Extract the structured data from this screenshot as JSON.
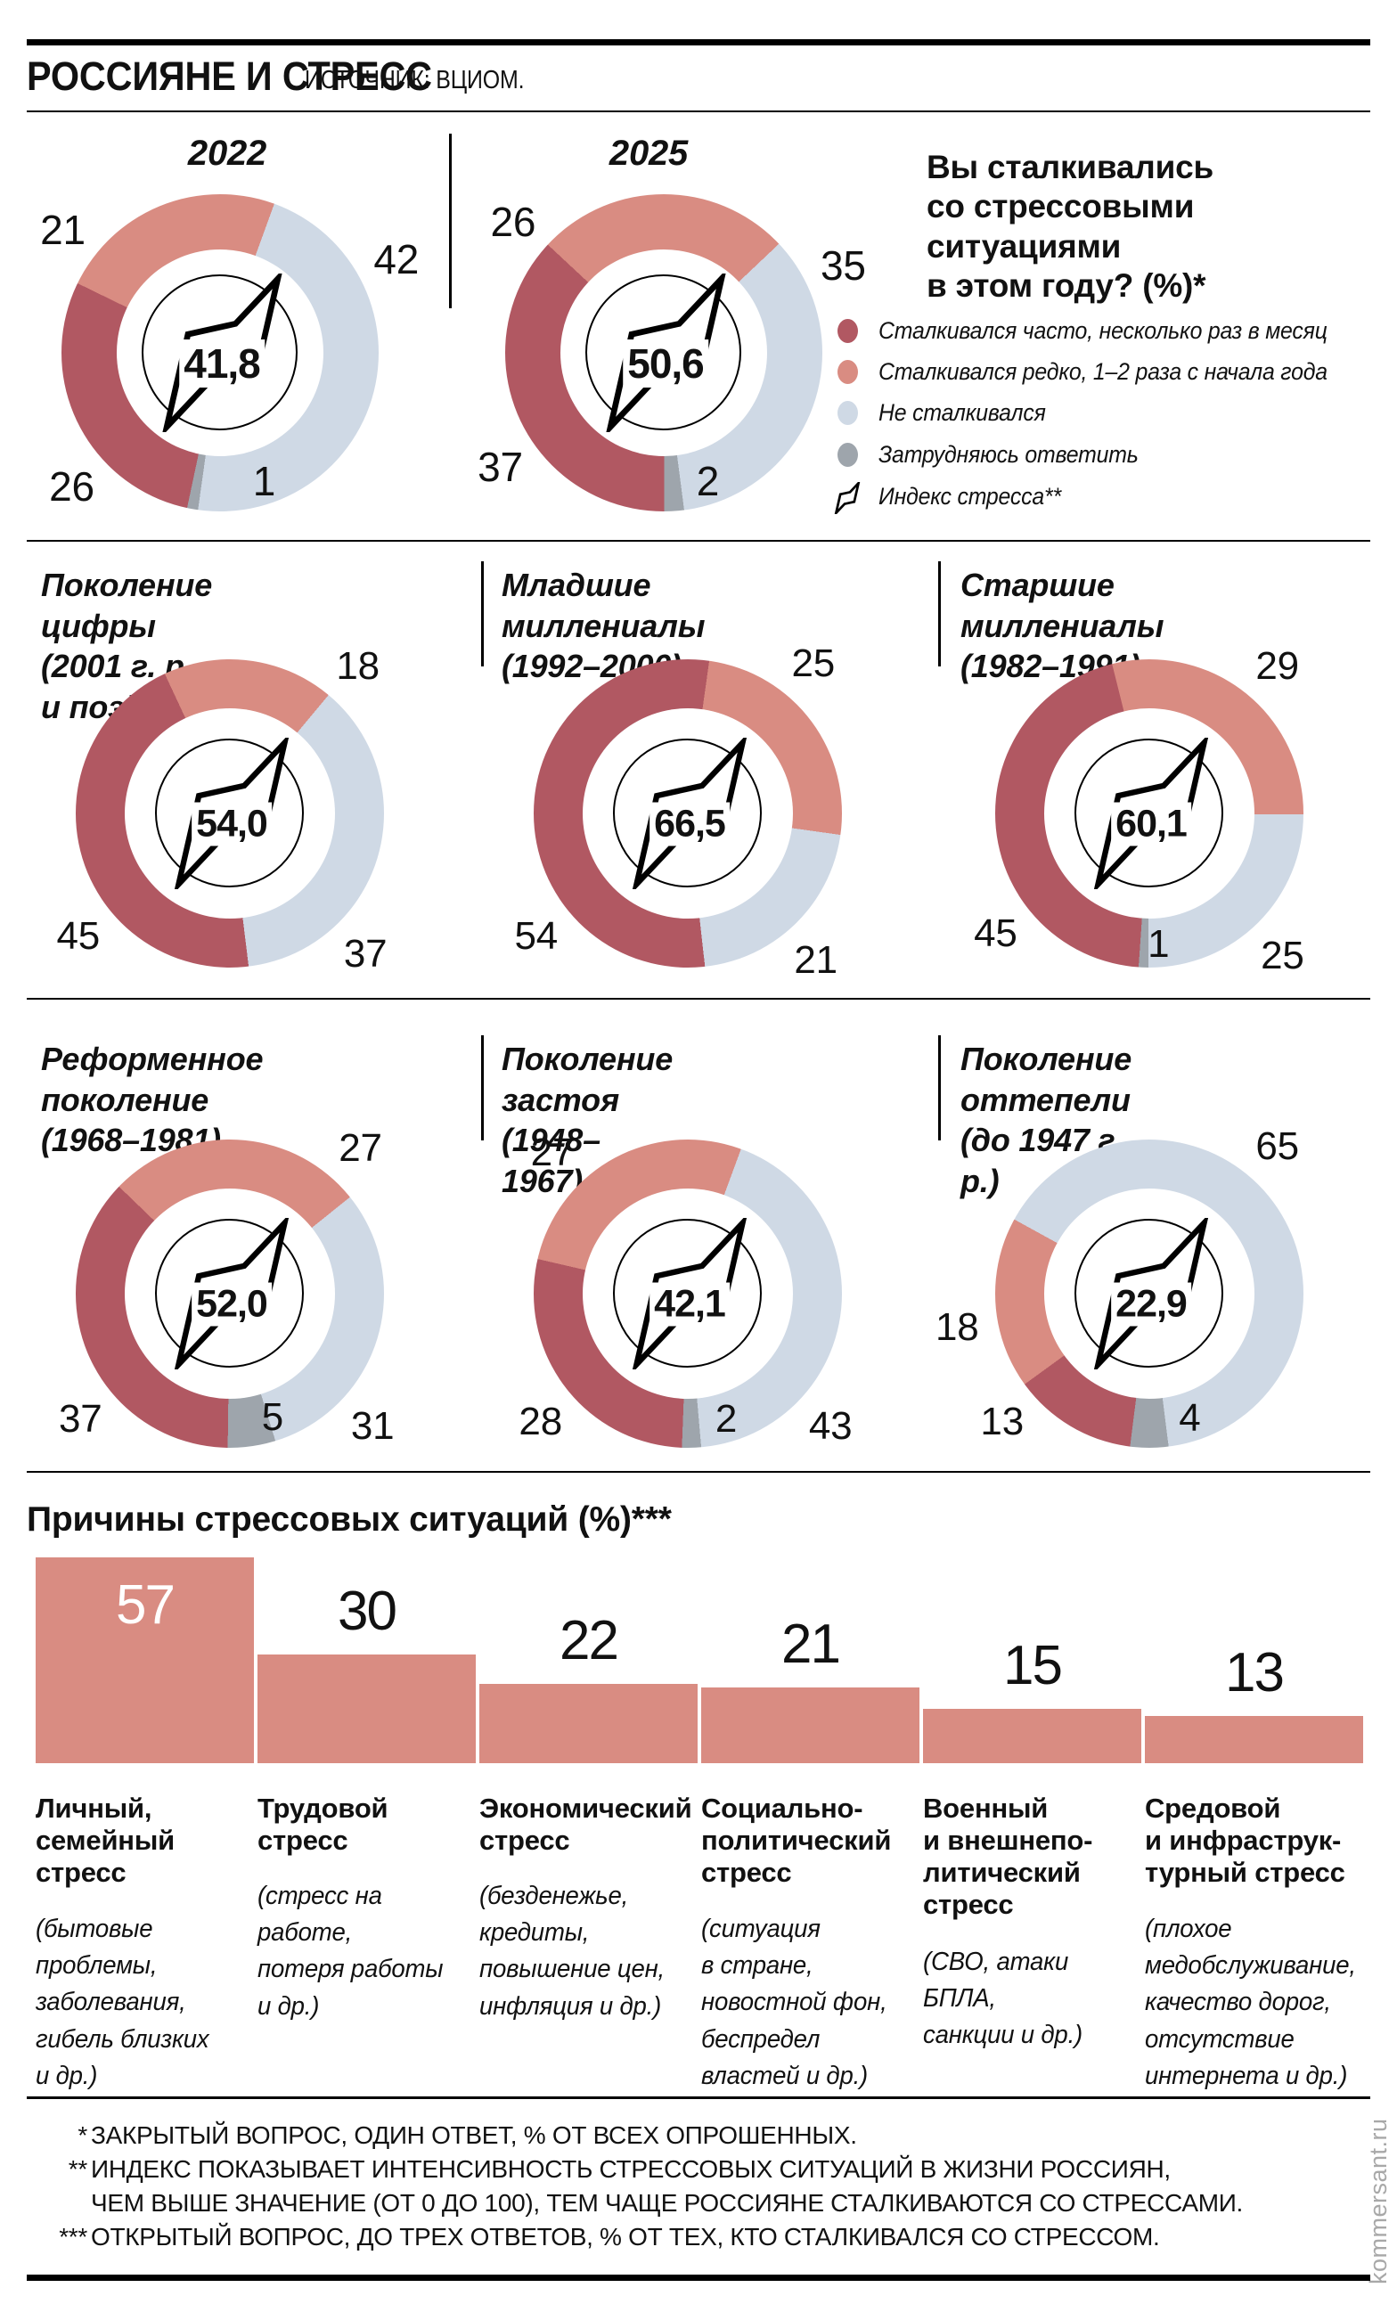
{
  "header": {
    "title": "РОССИЯНЕ И СТРЕСС",
    "source": "ИСТОЧНИК: ВЦИОМ."
  },
  "question": {
    "text": "Вы сталкивались\nсо стрессовыми\nситуациями\nв этом году? (%)*"
  },
  "colors": {
    "often": "#B15862",
    "rarely": "#D98C82",
    "none": "#CFD9E5",
    "unsure": "#9EA5AC",
    "bar": "#D98C82",
    "text": "#111111",
    "watermark": "#A8A8A8"
  },
  "legend": {
    "items": [
      {
        "key": "often",
        "type": "dot",
        "label": "Сталкивался часто, несколько раз в месяц"
      },
      {
        "key": "rarely",
        "type": "dot",
        "label": "Сталкивался редко, 1–2 раза с начала года"
      },
      {
        "key": "none",
        "type": "dot",
        "label": "Не сталкивался"
      },
      {
        "key": "unsure",
        "type": "dot",
        "label": "Затрудняюсь ответить"
      },
      {
        "key": "index",
        "type": "flag",
        "label": "Индекс стресса**"
      }
    ]
  },
  "chart_data": {
    "donuts": [
      {
        "id": "y2022",
        "title": "2022",
        "index": "41,8",
        "rotation": -64,
        "segments": [
          {
            "key": "rarely",
            "value": 21,
            "label_angle": -52
          },
          {
            "key": "none",
            "value": 42,
            "label_angle": 62
          },
          {
            "key": "unsure",
            "value": 1,
            "label_angle": 161,
            "label_inside": true
          },
          {
            "key": "often",
            "value": 26,
            "label_angle": 228
          }
        ]
      },
      {
        "id": "y2025",
        "title": "2025",
        "index": "50,6",
        "rotation": -47,
        "segments": [
          {
            "key": "rarely",
            "value": 26,
            "label_angle": -49
          },
          {
            "key": "none",
            "value": 35,
            "label_angle": 64
          },
          {
            "key": "unsure",
            "value": 2,
            "label_angle": 161,
            "label_inside": true
          },
          {
            "key": "often",
            "value": 37,
            "label_angle": 235
          }
        ]
      },
      {
        "id": "gen-digital",
        "title": "Поколение цифры\n(2001 г. р. и позднее)",
        "index": "54,0",
        "rotation": -25,
        "segments": [
          {
            "key": "rarely",
            "value": 18,
            "label_angle": 41
          },
          {
            "key": "none",
            "value": 37,
            "label_angle": 136
          },
          {
            "key": "often",
            "value": 45,
            "label_angle": 231
          }
        ]
      },
      {
        "id": "gen-younger-mill",
        "title": "Младшие миллениалы\n(1992–2000)",
        "index": "66,5",
        "rotation": 8,
        "segments": [
          {
            "key": "rarely",
            "value": 25,
            "label_angle": 40
          },
          {
            "key": "none",
            "value": 21,
            "label_angle": 139
          },
          {
            "key": "often",
            "value": 54,
            "label_angle": 231
          }
        ]
      },
      {
        "id": "gen-older-mill",
        "title": "Старшие миллениалы\n(1982–1991)",
        "index": "60,1",
        "rotation": -14,
        "segments": [
          {
            "key": "rarely",
            "value": 29,
            "label_angle": 41
          },
          {
            "key": "none",
            "value": 25,
            "label_angle": 137
          },
          {
            "key": "unsure",
            "value": 1,
            "label_angle": 176,
            "label_inside": true
          },
          {
            "key": "often",
            "value": 45,
            "label_angle": 232
          }
        ]
      },
      {
        "id": "gen-reform",
        "title": "Реформенное поколение\n(1968–1981)",
        "index": "52,0",
        "rotation": -46,
        "segments": [
          {
            "key": "rarely",
            "value": 27,
            "label_angle": 42
          },
          {
            "key": "none",
            "value": 31,
            "label_angle": 133
          },
          {
            "key": "unsure",
            "value": 5,
            "label_angle": 161,
            "label_inside": true
          },
          {
            "key": "often",
            "value": 37,
            "label_angle": 230
          }
        ]
      },
      {
        "id": "gen-stagnation",
        "title": "Поколение застоя\n(1948–1967)",
        "index": "42,1",
        "rotation": -77,
        "segments": [
          {
            "key": "rarely",
            "value": 27,
            "label_angle": -44
          },
          {
            "key": "none",
            "value": 43,
            "label_angle": 133
          },
          {
            "key": "unsure",
            "value": 2,
            "label_angle": 163,
            "label_inside": true
          },
          {
            "key": "often",
            "value": 28,
            "label_angle": 229
          }
        ]
      },
      {
        "id": "gen-thaw",
        "title": "Поколение оттепели\n(до 1947 г. р.)",
        "index": "22,9",
        "rotation": -126,
        "segments": [
          {
            "key": "rarely",
            "value": 18,
            "label_angle": 260
          },
          {
            "key": "none",
            "value": 65,
            "label_angle": 41
          },
          {
            "key": "unsure",
            "value": 4,
            "label_angle": 162,
            "label_inside": true
          },
          {
            "key": "often",
            "value": 13,
            "label_angle": 229
          }
        ]
      }
    ],
    "bar_chart": {
      "type": "bar",
      "title": "Причины стрессовых ситуаций (%)***",
      "ylim": [
        0,
        60
      ],
      "bars": [
        {
          "value": 57,
          "value_inside": true,
          "label": "Личный,\nсемейный\nстресс",
          "sublabel": "(бытовые\nпроблемы,\nзаболевания,\nгибель близких\nи др.)"
        },
        {
          "value": 30,
          "label": "Трудовой\nстресс",
          "sublabel": "(стресс на работе,\nпотеря работы\nи др.)"
        },
        {
          "value": 22,
          "label": "Экономический\nстресс",
          "sublabel": "(безденежье,\nкредиты,\nповышение цен,\nинфляция и др.)"
        },
        {
          "value": 21,
          "label": "Социально-\nполитический\nстресс",
          "sublabel": "(ситуация\nв стране,\nновостной фон,\nбеспредел\nвластей и др.)"
        },
        {
          "value": 15,
          "label": "Военный\nи внешнепо-\nлитический\nстресс",
          "sublabel": "(СВО, атаки БПЛА,\nсанкции и др.)"
        },
        {
          "value": 13,
          "label": "Средовой\nи инфраструк-\nтурный стресс",
          "sublabel": "(плохое\nмедобслуживание,\nкачество дорог,\nотсутствие\nинтернета и др.)"
        }
      ]
    }
  },
  "footnotes": {
    "items": [
      {
        "marker": "*",
        "text": "ЗАКРЫТЫЙ ВОПРОС, ОДИН ОТВЕТ, % ОТ ВСЕХ ОПРОШЕННЫХ."
      },
      {
        "marker": "**",
        "text": "ИНДЕКС ПОКАЗЫВАЕТ ИНТЕНСИВНОСТЬ СТРЕССОВЫХ СИТУАЦИЙ В ЖИЗНИ РОССИЯН,\nЧЕМ ВЫШЕ ЗНАЧЕНИЕ (ОТ 0 ДО 100), ТЕМ ЧАЩЕ РОССИЯНЕ СТАЛКИВАЮТСЯ СО СТРЕССАМИ."
      },
      {
        "marker": "***",
        "text": "ОТКРЫТЫЙ ВОПРОС, ДО ТРЕХ ОТВЕТОВ, % ОТ ТЕХ, КТО СТАЛКИВАЛСЯ СО СТРЕССОМ."
      }
    ]
  },
  "watermark": "kommersant.ru"
}
